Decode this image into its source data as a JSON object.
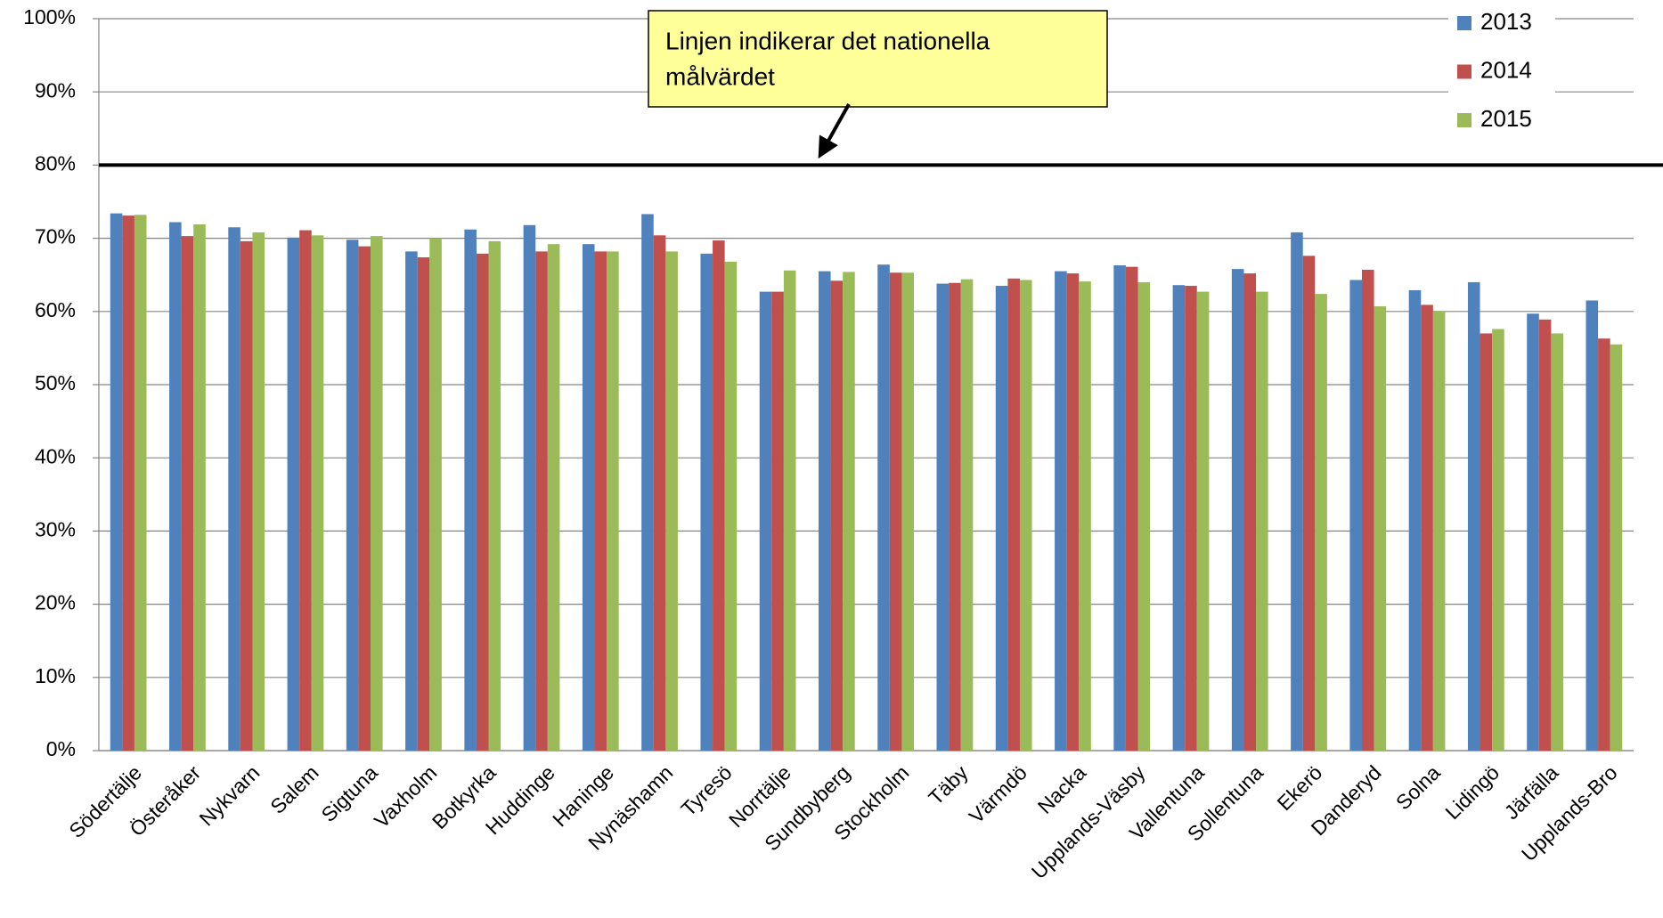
{
  "chart_data": {
    "type": "bar",
    "categories": [
      "Södertälje",
      "Österåker",
      "Nykvarn",
      "Salem",
      "Sigtuna",
      "Vaxholm",
      "Botkyrka",
      "Huddinge",
      "Haninge",
      "Nynäshamn",
      "Tyresö",
      "Norrtälje",
      "Sundbyberg",
      "Stockholm",
      "Täby",
      "Värmdö",
      "Nacka",
      "Upplands-Väsby",
      "Vallentuna",
      "Sollentuna",
      "Ekerö",
      "Danderyd",
      "Solna",
      "Lidingö",
      "Järfälla",
      "Upplands-Bro"
    ],
    "series": [
      {
        "name": "2013",
        "color": "#4f81bd",
        "values": [
          73.4,
          72.2,
          71.5,
          70.1,
          69.8,
          68.2,
          71.2,
          71.8,
          69.2,
          73.3,
          67.9,
          62.7,
          65.5,
          66.4,
          63.8,
          63.5,
          65.5,
          66.3,
          63.6,
          65.8,
          70.8,
          64.3,
          62.9,
          64.0,
          59.7,
          61.5
        ]
      },
      {
        "name": "2014",
        "color": "#c0504d",
        "values": [
          73.1,
          70.3,
          69.6,
          71.1,
          68.9,
          67.4,
          67.9,
          68.2,
          68.2,
          70.4,
          69.7,
          62.7,
          64.2,
          65.3,
          63.9,
          64.5,
          65.2,
          66.1,
          63.5,
          65.2,
          67.6,
          65.7,
          60.9,
          57.0,
          58.9,
          56.3
        ]
      },
      {
        "name": "2015",
        "color": "#9bbb59",
        "values": [
          73.2,
          71.9,
          70.8,
          70.4,
          70.3,
          70.0,
          69.6,
          69.2,
          68.2,
          68.2,
          66.8,
          65.6,
          65.4,
          65.3,
          64.4,
          64.3,
          64.1,
          64.0,
          62.7,
          62.7,
          62.4,
          60.7,
          60.0,
          57.6,
          57.0,
          55.5
        ]
      }
    ],
    "ylim": [
      0,
      100
    ],
    "yticks": [
      {
        "value": 0,
        "label": "0%"
      },
      {
        "value": 10,
        "label": "10%"
      },
      {
        "value": 20,
        "label": "20%"
      },
      {
        "value": 30,
        "label": "30%"
      },
      {
        "value": 40,
        "label": "40%"
      },
      {
        "value": 50,
        "label": "50%"
      },
      {
        "value": 60,
        "label": "60%"
      },
      {
        "value": 70,
        "label": "70%"
      },
      {
        "value": 80,
        "label": "80%"
      },
      {
        "value": 90,
        "label": "90%"
      },
      {
        "value": 100,
        "label": "100%"
      }
    ],
    "grid": true,
    "target_line": 80,
    "annotation": [
      "Linjen indikerar det nationella",
      "målvärdet"
    ],
    "legend": "top-right"
  }
}
